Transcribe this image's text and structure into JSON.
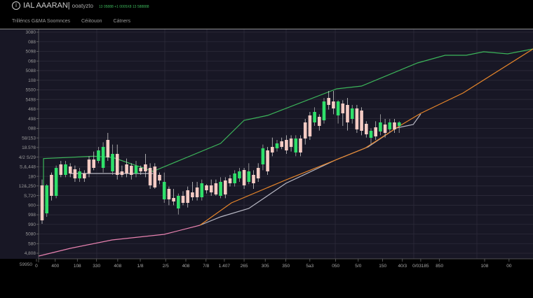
{
  "header": {
    "title": "IAL AAARAN|",
    "subtitle": "ooatyzto",
    "ticker": "13 05888 +1 0005X8 13 588888",
    "info_icon": "info-circle-icon",
    "tabs": [
      "Trilléncs G&MA Soomnces",
      "Céiitouon",
      "Cátners"
    ]
  },
  "colors": {
    "background": "#181725",
    "up": "#2fe06a",
    "down": "#f5cbc4",
    "upper_band": "#3cb55a",
    "orange_line": "#e8862a",
    "gray_line": "#b8b8c4",
    "pink_line": "#e882b0"
  },
  "chart_data": {
    "type": "candlestick",
    "grid": true,
    "xlim": [
      -0.75,
      104.5
    ],
    "ylim": [
      0,
      98.4
    ],
    "y_tick_labels": [
      "3080",
      "088",
      "5098",
      "068",
      "5088",
      "108",
      "5500",
      "5498",
      "468",
      "498",
      "088",
      "58/153",
      "18.5?8",
      "4/2 S/29",
      "S,&,448",
      "180",
      "12&,250",
      "S,720",
      "900",
      "998",
      "990",
      "5080",
      "580",
      "4,808"
    ],
    "y_corner_label": "59950",
    "x_tick_labels": [
      {
        "x": -1.2,
        "label": "0"
      },
      {
        "x": 2.8,
        "label": "400"
      },
      {
        "x": 7.5,
        "label": "108"
      },
      {
        "x": 11.6,
        "label": "330"
      },
      {
        "x": 16.1,
        "label": "408"
      },
      {
        "x": 20.9,
        "label": "1/8"
      },
      {
        "x": 26.3,
        "label": "2/5"
      },
      {
        "x": 30.6,
        "label": "408"
      },
      {
        "x": 34.9,
        "label": "7/8"
      },
      {
        "x": 38.8,
        "label": "1.407"
      },
      {
        "x": 43,
        "label": "265"
      },
      {
        "x": 47.5,
        "label": "305"
      },
      {
        "x": 51.9,
        "label": "350"
      },
      {
        "x": 57,
        "label": "5a3"
      },
      {
        "x": 62.5,
        "label": "050"
      },
      {
        "x": 67.3,
        "label": "5/0"
      },
      {
        "x": 72.5,
        "label": "150"
      },
      {
        "x": 76.7,
        "label": "40/3"
      },
      {
        "x": 80.6,
        "label": "0/03185"
      },
      {
        "x": 84.6,
        "label": "850"
      },
      {
        "x": 94.2,
        "label": "108"
      },
      {
        "x": 99.4,
        "label": "00"
      }
    ],
    "candles": [
      [
        31.5,
        16.5,
        34,
        15
      ],
      [
        19.5,
        31.5,
        32,
        18
      ],
      [
        36,
        27,
        37,
        25
      ],
      [
        27,
        39,
        40,
        26
      ],
      [
        40.5,
        36,
        42,
        35
      ],
      [
        36,
        40.5,
        42,
        35
      ],
      [
        39.6,
        36.6,
        41,
        35
      ],
      [
        38.4,
        34.5,
        40,
        33
      ],
      [
        34.5,
        37.5,
        39,
        33
      ],
      [
        36.6,
        34.5,
        38,
        33
      ],
      [
        42.6,
        36.6,
        44,
        35
      ],
      [
        42.6,
        39,
        46,
        38
      ],
      [
        42,
        46.5,
        48,
        41
      ],
      [
        39,
        48,
        50,
        37
      ],
      [
        51,
        43.5,
        54,
        42
      ],
      [
        37.5,
        45,
        49,
        36
      ],
      [
        45,
        36,
        49,
        34
      ],
      [
        37.5,
        36,
        40,
        35
      ],
      [
        40.5,
        36.6,
        43,
        35
      ],
      [
        39.9,
        36,
        41,
        34
      ],
      [
        36.6,
        39.9,
        42,
        35
      ],
      [
        39,
        37.5,
        40,
        36
      ],
      [
        40.5,
        37.5,
        45,
        35
      ],
      [
        39,
        31.5,
        41,
        30
      ],
      [
        39.6,
        30.6,
        41,
        30
      ],
      [
        36,
        33.6,
        37,
        32
      ],
      [
        25.5,
        33,
        37,
        24
      ],
      [
        30,
        25.5,
        31,
        23
      ],
      [
        26.1,
        24.6,
        30,
        23
      ],
      [
        21.6,
        27,
        28,
        19
      ],
      [
        27,
        24,
        29,
        23
      ],
      [
        29.4,
        24,
        31,
        22
      ],
      [
        28.5,
        26.4,
        33,
        25
      ],
      [
        30.6,
        26.4,
        33,
        25
      ],
      [
        26.4,
        32.4,
        34,
        25
      ],
      [
        31.5,
        29.4,
        32,
        28
      ],
      [
        31.5,
        28.5,
        34,
        27
      ],
      [
        32.4,
        27.6,
        34,
        27
      ],
      [
        27,
        33,
        35,
        26
      ],
      [
        33.6,
        27.6,
        35,
        26
      ],
      [
        34.5,
        32.4,
        36,
        31
      ],
      [
        32.4,
        36.6,
        38,
        31
      ],
      [
        34.5,
        37.5,
        39,
        33
      ],
      [
        38.1,
        31.5,
        39,
        30
      ],
      [
        33,
        37.5,
        41,
        32
      ],
      [
        36,
        32.4,
        38,
        30
      ],
      [
        39,
        34.5,
        41,
        33
      ],
      [
        40.5,
        47.4,
        49,
        38
      ],
      [
        46.5,
        37.5,
        48,
        36
      ],
      [
        48,
        45.6,
        52,
        44
      ],
      [
        47.4,
        49.5,
        51,
        46
      ],
      [
        50.4,
        48,
        52,
        47
      ],
      [
        51,
        46.5,
        53,
        45
      ],
      [
        51.6,
        48,
        53,
        46
      ],
      [
        45.6,
        51.6,
        53,
        44
      ],
      [
        51.6,
        45.6,
        53,
        44
      ],
      [
        58.5,
        51.6,
        60,
        49
      ],
      [
        61.5,
        52.5,
        63,
        51
      ],
      [
        58.5,
        63,
        65,
        57
      ],
      [
        60.9,
        57,
        62,
        55
      ],
      [
        59.4,
        67.5,
        69,
        58
      ],
      [
        69,
        66,
        72,
        64
      ],
      [
        67.5,
        64.5,
        72,
        62
      ],
      [
        61.5,
        67.5,
        68,
        58
      ],
      [
        66.6,
        62.4,
        68,
        57
      ],
      [
        66,
        58.5,
        69,
        55
      ],
      [
        60,
        64.5,
        66,
        58
      ],
      [
        64.5,
        55.5,
        66,
        54
      ],
      [
        63.6,
        54.9,
        65,
        53
      ],
      [
        57.9,
        53.4,
        59,
        52
      ],
      [
        51.9,
        54.9,
        56,
        49
      ],
      [
        56.4,
        52.5,
        59,
        51
      ],
      [
        54.6,
        58.5,
        62,
        53
      ],
      [
        57.6,
        54,
        60,
        52
      ],
      [
        55.5,
        58.5,
        60,
        54
      ],
      [
        58.5,
        55.5,
        60,
        54
      ],
      [
        57,
        58.5,
        59,
        54
      ]
    ],
    "lines": [
      {
        "color_key": "upper_band",
        "points": [
          [
            0.3,
            21
          ],
          [
            0.3,
            43
          ],
          [
            11,
            44
          ],
          [
            15,
            43.5
          ],
          [
            23.6,
            37.5
          ],
          [
            38,
            49.5
          ],
          [
            43,
            59.4
          ],
          [
            48,
            61.5
          ],
          [
            62.7,
            72.9
          ],
          [
            68,
            74.1
          ],
          [
            79.9,
            84
          ],
          [
            85.8,
            87.3
          ],
          [
            90.3,
            87.3
          ],
          [
            94,
            88.8
          ],
          [
            99.1,
            87.9
          ],
          [
            104.5,
            90
          ]
        ]
      },
      {
        "color_key": "gray_line",
        "points": [
          [
            6,
            36.6
          ],
          [
            23.6,
            36.6
          ]
        ]
      },
      {
        "color_key": "gray_line",
        "points": [
          [
            33.6,
            14.4
          ],
          [
            38,
            18
          ],
          [
            44,
            21.6
          ],
          [
            51.9,
            32.4
          ],
          [
            62.7,
            42.6
          ],
          [
            69.4,
            48
          ],
          [
            75.4,
            56.1
          ],
          [
            79,
            57.6
          ],
          [
            80.6,
            62.1
          ]
        ]
      },
      {
        "color_key": "orange_line",
        "points": [
          [
            33.6,
            14.4
          ],
          [
            40.3,
            24
          ],
          [
            51.6,
            33.6
          ],
          [
            68.7,
            47.4
          ],
          [
            76.1,
            57
          ],
          [
            80.6,
            62.4
          ],
          [
            89.6,
            71.1
          ],
          [
            104.5,
            90
          ]
        ]
      },
      {
        "color_key": "pink_line",
        "points": [
          [
            -0.7,
            1.2
          ],
          [
            6,
            4.5
          ],
          [
            14.9,
            8.1
          ],
          [
            26,
            10.5
          ],
          [
            33.6,
            14.4
          ]
        ]
      }
    ]
  }
}
